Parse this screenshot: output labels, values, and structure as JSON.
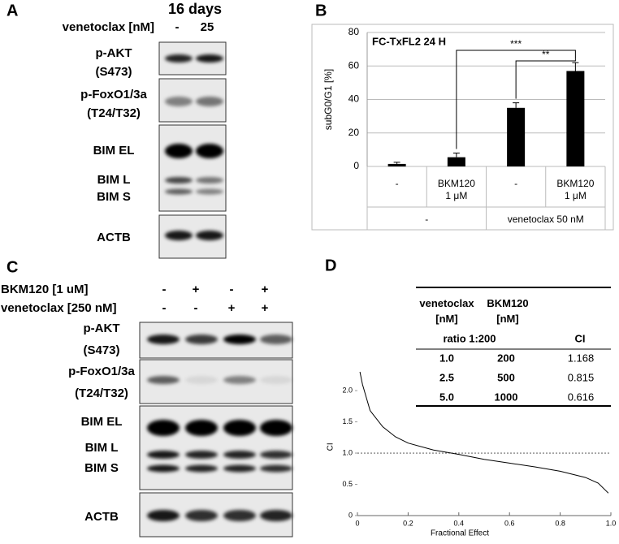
{
  "panel_labels": [
    "A",
    "B",
    "C",
    "D"
  ],
  "blot_a": {
    "title": "16 days",
    "condition": {
      "label": "venetoclax [nM]",
      "lanes": [
        "-",
        "25"
      ]
    },
    "rows": [
      [
        "p-AKT",
        "(S473)"
      ],
      [
        "p-FoxO1/3a",
        "(T24/T32)"
      ],
      [
        "BIM EL",
        "BIM L",
        "BIM S"
      ],
      [
        "ACTB"
      ]
    ]
  },
  "blot_c": {
    "conditions": [
      {
        "label": "BKM120 [1 uM]",
        "lanes": [
          "-",
          "+",
          "-",
          "+"
        ]
      },
      {
        "label": "venetoclax [250 nM]",
        "lanes": [
          "-",
          "-",
          "+",
          "+"
        ]
      }
    ],
    "rows": [
      [
        "p-AKT",
        "(S473)"
      ],
      [
        "p-FoxO1/3a",
        "(T24/T32)"
      ],
      [
        "BIM EL",
        "BIM L",
        "BIM S"
      ],
      [
        "ACTB"
      ]
    ]
  },
  "chart_data": [
    {
      "type": "bar",
      "title": "FC-TxFL2 24 H",
      "ylabel": "subG0/G1 [%]",
      "categories": [
        "-",
        "BKM120 1 μM",
        "-",
        "BKM120 1 μM"
      ],
      "groups": [
        {
          "label": "-",
          "count": 2
        },
        {
          "label": "venetoclax 50 nM",
          "count": 2
        }
      ],
      "values": [
        1.5,
        5.5,
        35,
        57
      ],
      "errors": [
        1,
        2.5,
        3,
        5
      ],
      "color": "#000000",
      "ylim": [
        0,
        80
      ],
      "yticks": [
        0,
        20,
        40,
        60,
        80
      ],
      "grid": true,
      "significance": [
        {
          "label": "***",
          "from": 1,
          "to": 3
        },
        {
          "label": "**",
          "from": 2,
          "to": 3
        }
      ]
    },
    {
      "type": "line",
      "xlabel": "Fractional Effect",
      "ylabel": "CI",
      "x": [
        0.01,
        0.02,
        0.05,
        0.1,
        0.15,
        0.2,
        0.3,
        0.4,
        0.5,
        0.6,
        0.7,
        0.8,
        0.9,
        0.95,
        0.99
      ],
      "values": [
        2.3,
        2.1,
        1.68,
        1.42,
        1.26,
        1.16,
        1.05,
        0.98,
        0.9,
        0.84,
        0.78,
        0.71,
        0.61,
        0.52,
        0.36
      ],
      "color": "#000000",
      "reference_y": 1,
      "xlim": [
        0,
        1
      ],
      "xticks": [
        0,
        0.2,
        0.4,
        0.6,
        0.8,
        {
          "value": 1,
          "label": "1.0"
        }
      ],
      "ylim": [
        0,
        2.3
      ],
      "yticks": [
        0,
        0.5,
        {
          "value": 1,
          "label": "1.0"
        },
        1.5,
        {
          "value": 2,
          "label": "2.0"
        }
      ]
    }
  ],
  "table_d": {
    "headers": [
      "venetoclax [nM]",
      "BKM120 [nM]"
    ],
    "subheaders": [
      "ratio 1:200",
      "CI"
    ],
    "rows": [
      [
        "1.0",
        "200",
        "1.168"
      ],
      [
        "2.5",
        "500",
        "0.815"
      ],
      [
        "5.0",
        "1000",
        "0.616"
      ]
    ]
  }
}
